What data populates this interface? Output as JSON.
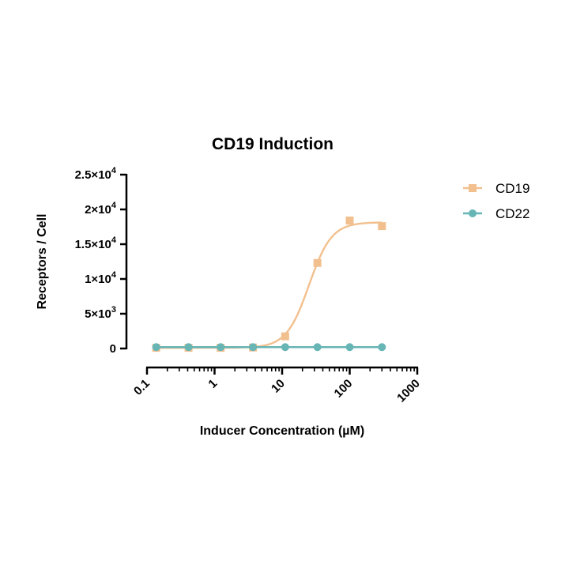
{
  "chart_data": {
    "type": "scatter",
    "title": "CD19 Induction",
    "xlabel": "Inducer Concentration (µM)",
    "ylabel": "Receptors / Cell",
    "x_scale": "log",
    "xlim": [
      0.1,
      1000
    ],
    "ylim": [
      0,
      25000
    ],
    "x_ticks": [
      0.1,
      1,
      10,
      100,
      1000
    ],
    "x_tick_labels": [
      "0.1",
      "1",
      "10",
      "100",
      "1000"
    ],
    "y_ticks": [
      0,
      5000,
      10000,
      15000,
      20000,
      25000
    ],
    "y_tick_labels": [
      {
        "mantissa": "0",
        "exp": ""
      },
      {
        "mantissa": "5×10",
        "exp": "3"
      },
      {
        "mantissa": "1×10",
        "exp": "4"
      },
      {
        "mantissa": "1.5×10",
        "exp": "4"
      },
      {
        "mantissa": "2×10",
        "exp": "4"
      },
      {
        "mantissa": "2.5×10",
        "exp": "4"
      }
    ],
    "grid": false,
    "legend_position": "top-right",
    "series": [
      {
        "name": "CD19",
        "color": "#F2C08E",
        "marker": "square",
        "fit": "sigmoidal",
        "x": [
          0.137,
          0.412,
          1.23,
          3.7,
          11.1,
          33.3,
          100,
          300
        ],
        "y": [
          100,
          100,
          100,
          150,
          1750,
          12300,
          18400,
          17600
        ]
      },
      {
        "name": "CD22",
        "color": "#67B5B5",
        "marker": "circle",
        "fit": "flat",
        "x": [
          0.137,
          0.412,
          1.23,
          3.7,
          11.1,
          33.3,
          100,
          300
        ],
        "y": [
          200,
          200,
          200,
          200,
          200,
          200,
          200,
          200
        ]
      }
    ]
  }
}
